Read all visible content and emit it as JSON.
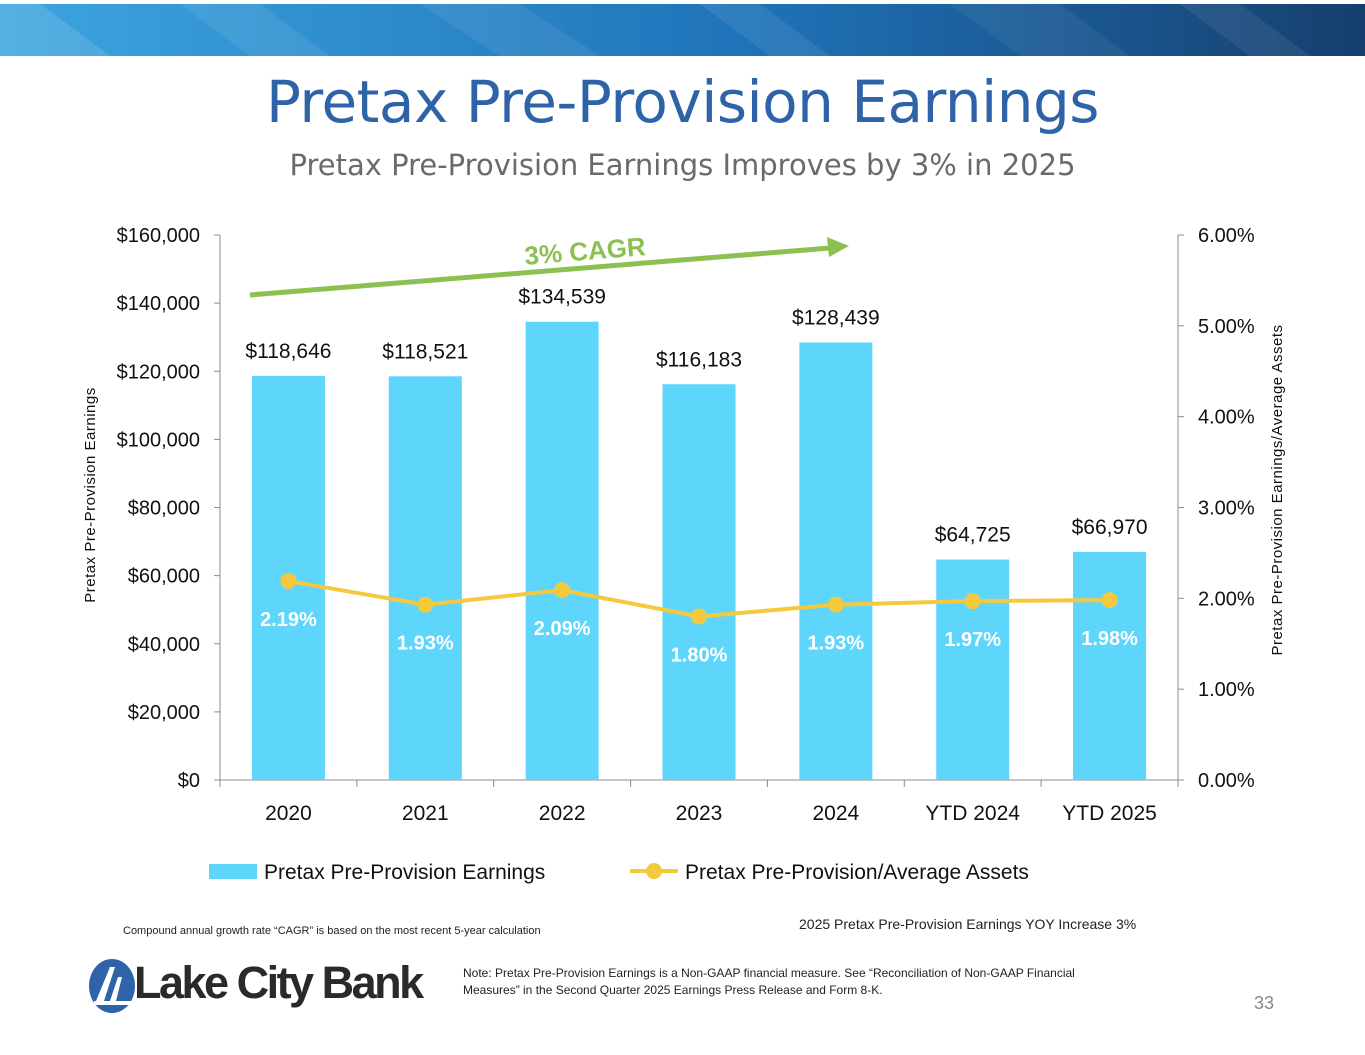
{
  "title": "Pretax Pre-Provision Earnings",
  "subtitle": "Pretax Pre-Provision Earnings Improves by 3% in 2025",
  "colors": {
    "bar": "#5ed5fb",
    "line": "#f5c93e",
    "cagr": "#8cc152",
    "title": "#2f63a8"
  },
  "chart_data": {
    "type": "bar",
    "categories": [
      "2020",
      "2021",
      "2022",
      "2023",
      "2024",
      "YTD 2024",
      "YTD 2025"
    ],
    "series": [
      {
        "name": "Pretax Pre-Provision Earnings",
        "axis": "left",
        "values": [
          118646,
          118521,
          134539,
          116183,
          128439,
          64725,
          66970
        ],
        "labels": [
          "$118,646",
          "$118,521",
          "$134,539",
          "$116,183",
          "$128,439",
          "$64,725",
          "$66,970"
        ]
      },
      {
        "name": "Pretax Pre-Provision/Average Assets",
        "type": "line",
        "axis": "right",
        "values": [
          2.19,
          1.93,
          2.09,
          1.8,
          1.93,
          1.97,
          1.98
        ],
        "labels": [
          "2.19%",
          "1.93%",
          "2.09%",
          "1.80%",
          "1.93%",
          "1.97%",
          "1.98%"
        ]
      }
    ],
    "ylabel": "Pretax Pre-Provision Earnings",
    "y2label": "Pretax Pre-Provision Earnings/Average Assets",
    "ylim": [
      0,
      160000
    ],
    "y2lim": [
      0,
      6
    ],
    "yticks": [
      "$0",
      "$20,000",
      "$40,000",
      "$60,000",
      "$80,000",
      "$100,000",
      "$120,000",
      "$140,000",
      "$160,000"
    ],
    "y2ticks": [
      "0.00%",
      "1.00%",
      "2.00%",
      "3.00%",
      "4.00%",
      "5.00%",
      "6.00%"
    ],
    "annotation": "3% CAGR",
    "legend_position": "bottom"
  },
  "notes": {
    "cagr": "Compound annual growth rate “CAGR” is based on the most recent 5-year calculation",
    "yoy": "2025 Pretax Pre-Provision Earnings YOY Increase 3%",
    "non_gaap": "Note: Pretax Pre-Provision Earnings is a Non-GAAP financial measure. See “Reconciliation of Non-GAAP Financial Measures” in the Second Quarter 2025 Earnings Press Release and Form 8-K."
  },
  "page_number": "33",
  "logo_text": "Lake City Bank"
}
